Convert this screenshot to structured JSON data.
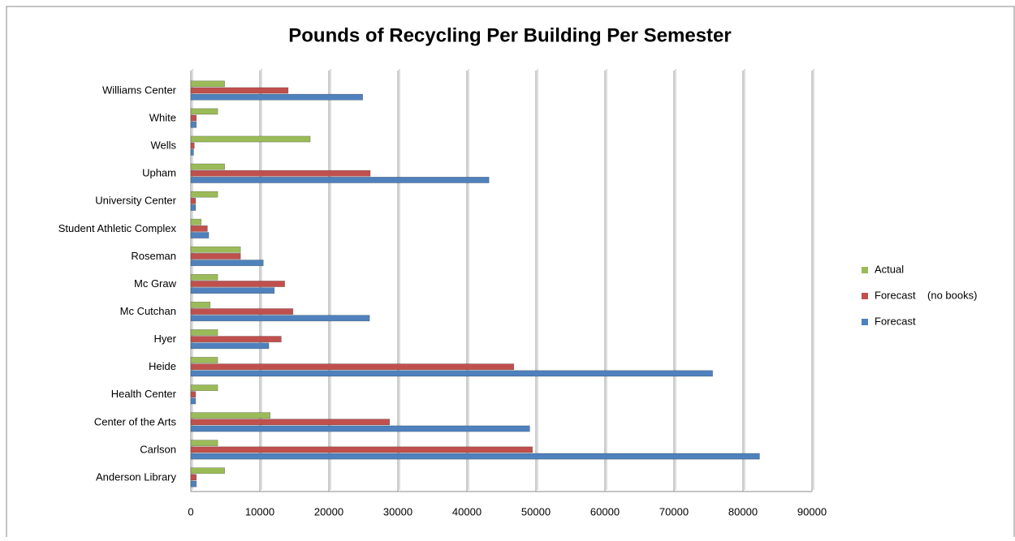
{
  "chart_data": {
    "type": "barh",
    "title": "Pounds of Recycling Per Building Per Semester",
    "categories": [
      "Anderson Library",
      "Carlson",
      "Center of the Arts",
      "Health Center",
      "Heide",
      "Hyer",
      "Mc Cutchan",
      "Mc Graw",
      "Roseman",
      "Student Athletic Complex",
      "University Center",
      "Upham",
      "Wells",
      "White",
      "Williams Center"
    ],
    "series": [
      {
        "name": "Forecast",
        "color": "#4f81bd",
        "values": [
          800,
          82400,
          49100,
          700,
          75600,
          11300,
          25900,
          12100,
          10500,
          2600,
          700,
          43200,
          400,
          800,
          24900
        ]
      },
      {
        "name": "Forecast    (no books)",
        "color": "#c0504d",
        "values": [
          800,
          49500,
          28800,
          700,
          46800,
          13100,
          14800,
          13600,
          7200,
          2400,
          700,
          26000,
          500,
          800,
          14100
        ]
      },
      {
        "name": "Actual",
        "color": "#9bbb59",
        "values": [
          4900,
          3900,
          11500,
          3900,
          3900,
          3900,
          2800,
          3900,
          7200,
          1500,
          3900,
          4900,
          17300,
          3900,
          4900
        ]
      }
    ],
    "xlim": [
      0,
      90000
    ],
    "xticks": [
      0,
      10000,
      20000,
      30000,
      40000,
      50000,
      60000,
      70000,
      80000,
      90000
    ],
    "grid": true,
    "legend": "right"
  }
}
